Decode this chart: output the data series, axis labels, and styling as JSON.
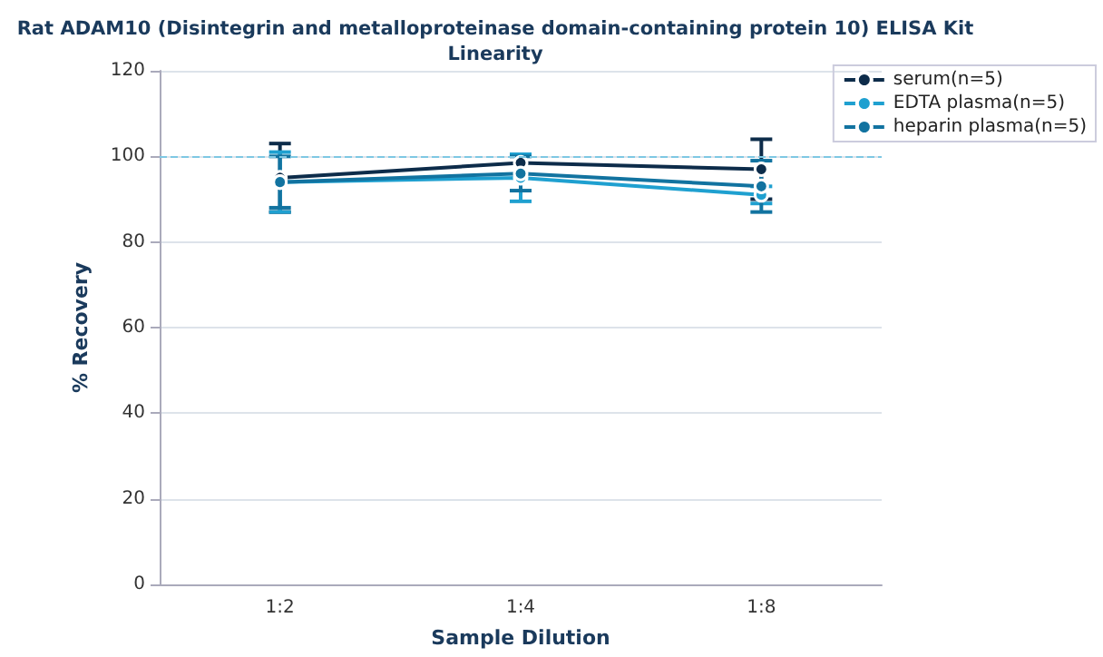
{
  "chart_data": {
    "type": "line",
    "title": "Rat ADAM10 (Disintegrin and metalloproteinase domain-containing protein 10) ELISA Kit\nLinearity",
    "xlabel": "Sample Dilution",
    "ylabel": "% Recovery",
    "categories": [
      "1:2",
      "1:4",
      "1:8"
    ],
    "series": [
      {
        "name": "serum(n=5)",
        "color": "#0d2c4a",
        "values": [
          95,
          98.5,
          97
        ],
        "errors": [
          8,
          null,
          7
        ]
      },
      {
        "name": "EDTA plasma(n=5)",
        "color": "#1fa0d0",
        "values": [
          94,
          95,
          91
        ],
        "errors": [
          7,
          5.5,
          2
        ]
      },
      {
        "name": "heparin plasma(n=5)",
        "color": "#1273a0",
        "values": [
          94,
          96,
          93
        ],
        "errors": [
          6,
          4,
          6
        ]
      }
    ],
    "ylim": [
      0,
      120
    ],
    "yticks": [
      0,
      20,
      40,
      60,
      80,
      100,
      120
    ],
    "grid": "y",
    "legend": "top right",
    "marker": "circle",
    "line_style": "solid",
    "ref_lines": [
      {
        "axis": "y",
        "value": 100,
        "color": "#7ec8e3",
        "line_style": "dashed"
      }
    ]
  }
}
